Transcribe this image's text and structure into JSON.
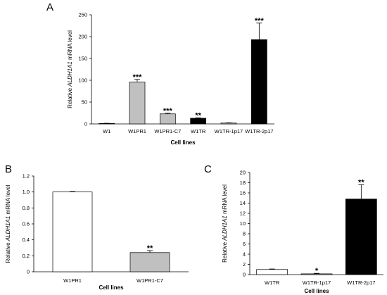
{
  "chart_data": [
    {
      "panel": "A",
      "type": "bar",
      "categories": [
        "W1",
        "W1PR1",
        "W1PR1-C7",
        "W1TR",
        "W1TR-1p17",
        "W1TR-2p17"
      ],
      "values": [
        1,
        96,
        23,
        13,
        2,
        193
      ],
      "errors": [
        0.5,
        6,
        1.5,
        1,
        0.5,
        38
      ],
      "colors": [
        "#ffffff",
        "#c0c0c0",
        "#c0c0c0",
        "#000000",
        "#c0c0c0",
        "#000000"
      ],
      "significance": [
        "",
        "***",
        "***",
        "**",
        "",
        "***"
      ],
      "xlabel": "Cell lines",
      "ylabel_prefix": "Relative ",
      "ylabel_gene": "ALDH1A1",
      "ylabel_suffix": " mRNA level",
      "ylim": [
        0,
        250
      ],
      "yticks": [
        "0",
        "50",
        "100",
        "150",
        "200",
        "250"
      ],
      "ytick_values": [
        0,
        50,
        100,
        150,
        200,
        250
      ]
    },
    {
      "panel": "B",
      "type": "bar",
      "categories": [
        "W1PR1",
        "W1PR1-C7"
      ],
      "values": [
        1.0,
        0.24
      ],
      "errors": [
        0.005,
        0.025
      ],
      "colors": [
        "#ffffff",
        "#c0c0c0"
      ],
      "significance": [
        "",
        "**"
      ],
      "xlabel": "Cell lines",
      "ylabel_prefix": "Relative ",
      "ylabel_gene": "ALDH1A1",
      "ylabel_suffix": " mRNA level",
      "ylim": [
        0,
        1.2
      ],
      "yticks": [
        "0",
        "0.2",
        "0.4",
        "0.6",
        "0.8",
        "1.0",
        "1.2"
      ],
      "ytick_values": [
        0,
        0.2,
        0.4,
        0.6,
        0.8,
        1.0,
        1.2
      ]
    },
    {
      "panel": "C",
      "type": "bar",
      "categories": [
        "W1TR",
        "W1TR-1p17",
        "W1TR-2p17"
      ],
      "values": [
        1.0,
        0.15,
        14.8
      ],
      "errors": [
        0.1,
        0.1,
        2.8
      ],
      "colors": [
        "#ffffff",
        "#c0c0c0",
        "#000000"
      ],
      "significance": [
        "",
        "*",
        "**"
      ],
      "xlabel": "Cell lines",
      "ylabel_prefix": "Relative ",
      "ylabel_gene": "ALDH1A1",
      "ylabel_suffix": " mRNA level",
      "ylim": [
        0,
        20
      ],
      "yticks": [
        "0",
        "2",
        "4",
        "6",
        "8",
        "10",
        "12",
        "14",
        "16",
        "18",
        "20"
      ],
      "ytick_values": [
        0,
        2,
        4,
        6,
        8,
        10,
        12,
        14,
        16,
        18,
        20
      ]
    }
  ]
}
